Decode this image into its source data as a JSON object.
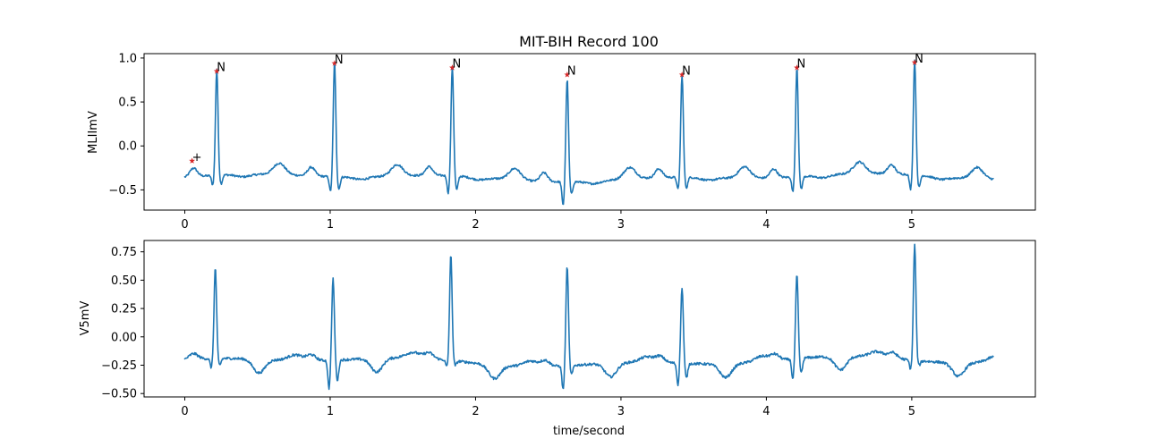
{
  "chart_data": [
    {
      "type": "line",
      "title": "MIT-BIH Record 100",
      "ylabel": "MLIImV",
      "xlabel": "",
      "xlim": [
        -0.28,
        5.85
      ],
      "ylim": [
        -0.73,
        1.05
      ],
      "xticks": [
        0,
        1,
        2,
        3,
        4,
        5
      ],
      "yticks": [
        -0.5,
        0.0,
        0.5,
        1.0
      ],
      "ytick_labels": [
        "−0.5",
        "0.0",
        "0.5",
        "1.0"
      ],
      "grid": false,
      "line_color": "#1f77b4",
      "marker_color": "#d62728",
      "duration": 5.56,
      "baseline": -0.36,
      "beats": [
        {
          "t": 0.22,
          "peak": 0.85,
          "q": -0.47,
          "s": -0.46
        },
        {
          "t": 1.03,
          "peak": 0.94,
          "q": -0.53,
          "s": -0.5
        },
        {
          "t": 1.84,
          "peak": 0.89,
          "q": -0.56,
          "s": -0.52
        },
        {
          "t": 2.63,
          "peak": 0.81,
          "q": -0.63,
          "s": -0.5
        },
        {
          "t": 3.42,
          "peak": 0.81,
          "q": -0.5,
          "s": -0.48
        },
        {
          "t": 4.21,
          "peak": 0.89,
          "q": -0.53,
          "s": -0.5
        },
        {
          "t": 5.02,
          "peak": 0.95,
          "q": -0.53,
          "s": -0.5
        }
      ],
      "annotations": [
        {
          "symbol": "+",
          "x": 0.05,
          "y": -0.17
        },
        {
          "symbol": "N",
          "x": 0.22,
          "y": 0.85
        },
        {
          "symbol": "N",
          "x": 1.03,
          "y": 0.94
        },
        {
          "symbol": "N",
          "x": 1.84,
          "y": 0.89
        },
        {
          "symbol": "N",
          "x": 2.63,
          "y": 0.81
        },
        {
          "symbol": "N",
          "x": 3.42,
          "y": 0.81
        },
        {
          "symbol": "N",
          "x": 4.21,
          "y": 0.89
        },
        {
          "symbol": "N",
          "x": 5.02,
          "y": 0.95
        }
      ]
    },
    {
      "type": "line",
      "title": "",
      "ylabel": "V5mV",
      "xlabel": "time/second",
      "xlim": [
        -0.28,
        5.85
      ],
      "ylim": [
        -0.53,
        0.85
      ],
      "xticks": [
        0,
        1,
        2,
        3,
        4,
        5
      ],
      "yticks": [
        -0.5,
        -0.25,
        0.0,
        0.25,
        0.5,
        0.75
      ],
      "ytick_labels": [
        "−0.50",
        "−0.25",
        "0.00",
        "0.25",
        "0.50",
        "0.75"
      ],
      "grid": false,
      "line_color": "#1f77b4",
      "duration": 5.56,
      "baseline": -0.22,
      "beats": [
        {
          "t": 0.21,
          "peak": 0.58,
          "q": -0.3,
          "s": -0.28
        },
        {
          "t": 1.02,
          "peak": 0.5,
          "q": -0.47,
          "s": -0.4
        },
        {
          "t": 1.83,
          "peak": 0.71,
          "q": -0.28,
          "s": -0.26
        },
        {
          "t": 2.63,
          "peak": 0.66,
          "q": -0.43,
          "s": -0.3
        },
        {
          "t": 3.42,
          "peak": 0.45,
          "q": -0.41,
          "s": -0.35
        },
        {
          "t": 4.21,
          "peak": 0.52,
          "q": -0.4,
          "s": -0.35
        },
        {
          "t": 5.02,
          "peak": 0.8,
          "q": -0.3,
          "s": -0.26
        }
      ]
    }
  ]
}
